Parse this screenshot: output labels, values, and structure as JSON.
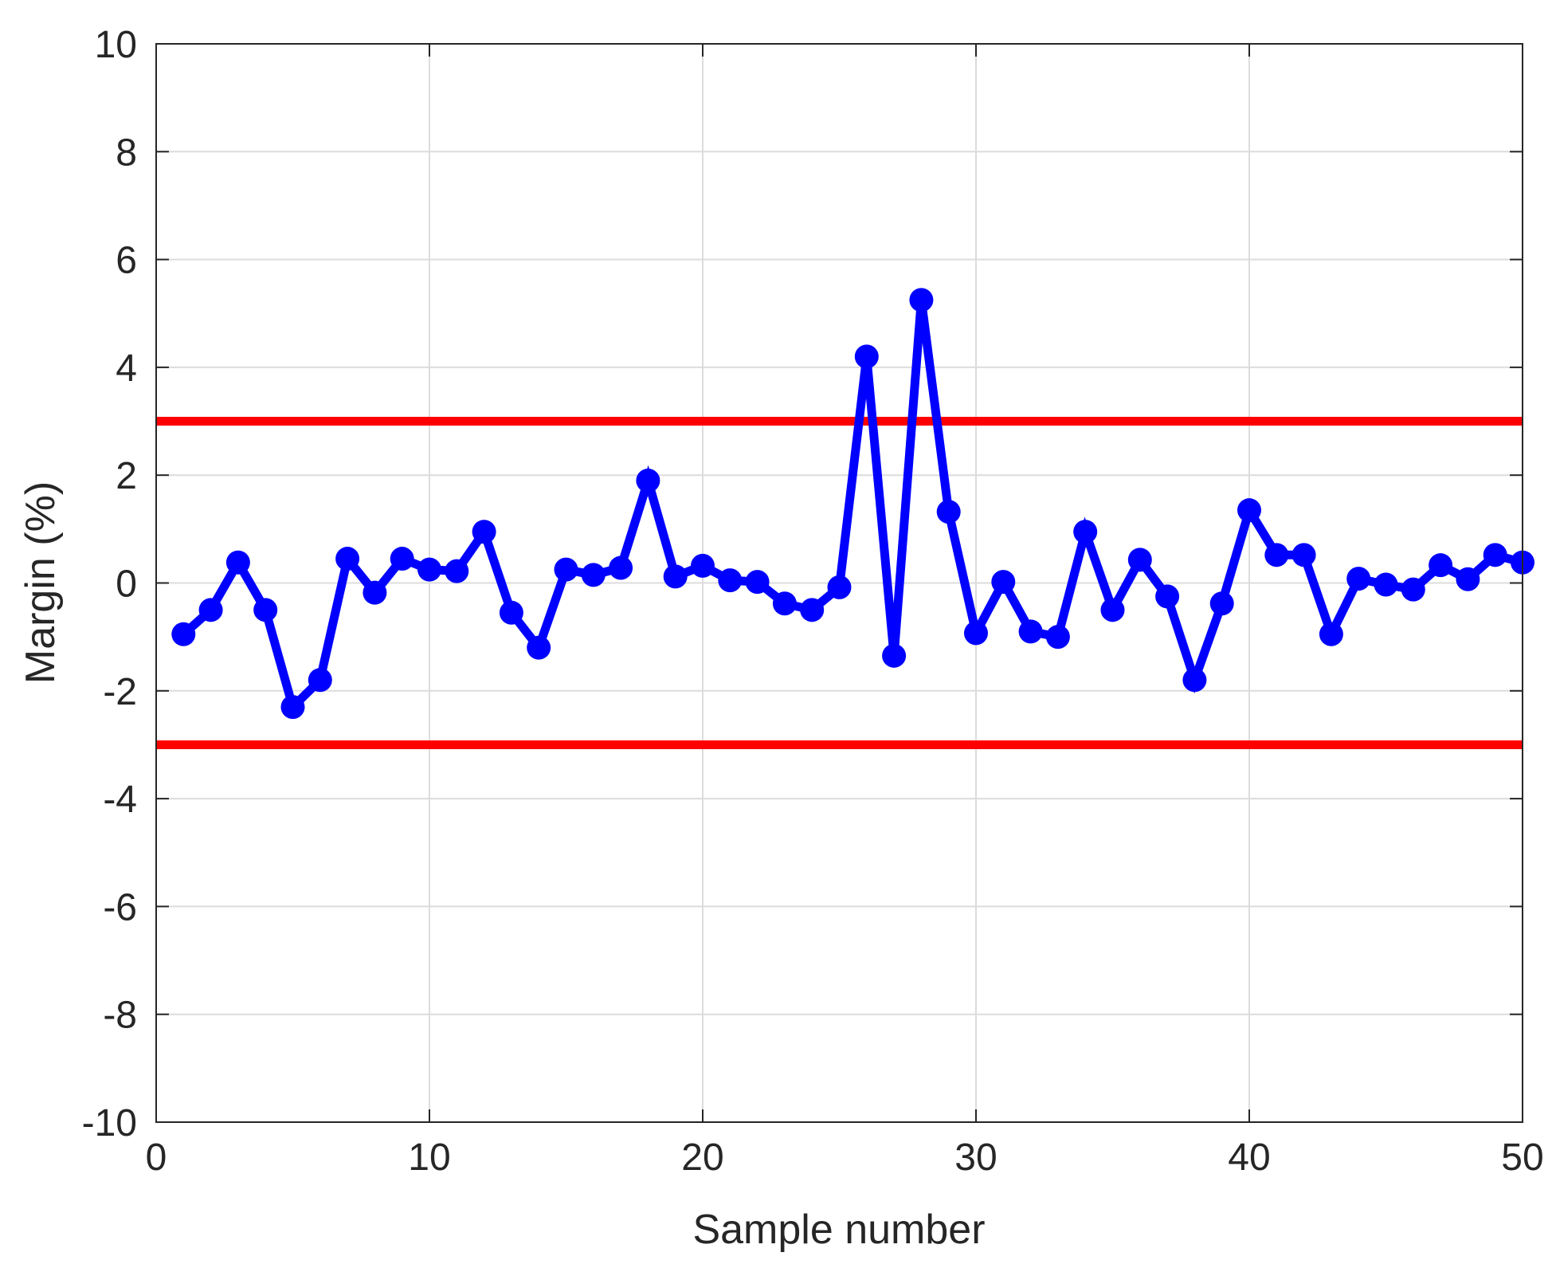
{
  "chart_data": {
    "type": "line",
    "title": "",
    "xlabel": "Sample number",
    "ylabel": "Margin (%)",
    "xlim": [
      0,
      50
    ],
    "ylim": [
      -10,
      10
    ],
    "x_ticks": [
      0,
      10,
      20,
      30,
      40,
      50
    ],
    "y_ticks": [
      -10,
      -8,
      -6,
      -4,
      -2,
      0,
      2,
      4,
      6,
      8,
      10
    ],
    "grid": true,
    "legend": "none",
    "series": [
      {
        "color": "#0000ff",
        "marker": "circle",
        "x": [
          1,
          2,
          3,
          4,
          5,
          6,
          7,
          8,
          9,
          10,
          11,
          12,
          13,
          14,
          15,
          16,
          17,
          18,
          19,
          20,
          21,
          22,
          23,
          24,
          25,
          26,
          27,
          28,
          29,
          30,
          31,
          32,
          33,
          34,
          35,
          36,
          37,
          38,
          39,
          40,
          41,
          42,
          43,
          44,
          45,
          46,
          47,
          48,
          49,
          50
        ],
        "values": [
          -0.95,
          -0.5,
          0.38,
          -0.5,
          -2.3,
          -1.8,
          0.45,
          -0.18,
          0.45,
          0.25,
          0.22,
          0.95,
          -0.55,
          -1.2,
          0.25,
          0.15,
          0.28,
          1.9,
          0.12,
          0.32,
          0.05,
          0.02,
          -0.38,
          -0.5,
          -0.08,
          4.2,
          -1.35,
          5.25,
          1.32,
          -0.93,
          0.02,
          -0.9,
          -1.0,
          0.95,
          -0.5,
          0.43,
          -0.25,
          -1.8,
          -0.38,
          1.35,
          0.52,
          0.52,
          -0.95,
          0.08,
          -0.03,
          -0.12,
          0.33,
          0.07,
          0.52,
          0.38
        ]
      }
    ],
    "reference_lines": [
      {
        "y": 3,
        "color": "#ff0000"
      },
      {
        "y": -3,
        "color": "#ff0000"
      }
    ]
  }
}
